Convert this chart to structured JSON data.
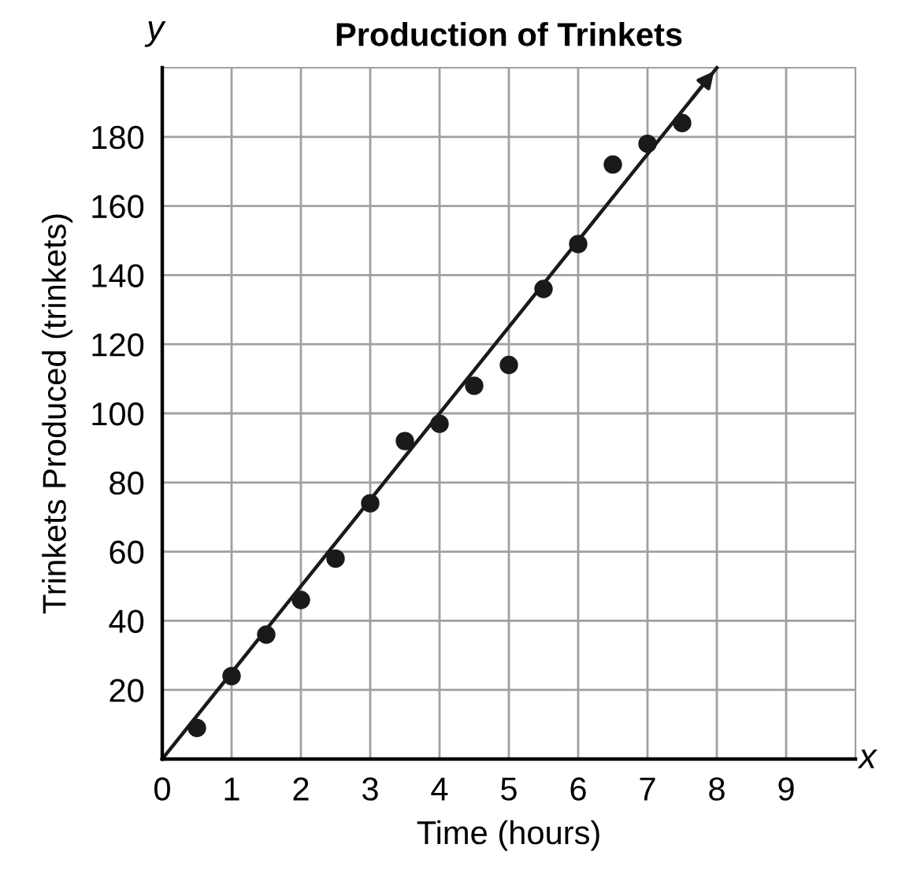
{
  "chart_data": {
    "type": "scatter",
    "title": "Production of Trinkets",
    "xlabel": "Time (hours)",
    "ylabel": "Trinkets Produced (trinkets)",
    "annotations": [
      "x",
      "y"
    ],
    "series": [
      {
        "color": "#1a1a1a",
        "x": [
          0.5,
          1,
          1.5,
          2,
          2.5,
          3,
          3.5,
          4,
          4.5,
          5,
          5.5,
          6,
          6.5,
          7,
          7.5
        ],
        "values": [
          9,
          24,
          36,
          46,
          58,
          74,
          92,
          97,
          108,
          114,
          136,
          149,
          172,
          178,
          184
        ],
        "marker": "circle"
      },
      {
        "type": "line",
        "color": "#1a1a1a",
        "x": [
          0,
          8
        ],
        "values": [
          0,
          200
        ],
        "marker": "none",
        "line_style": "solid"
      }
    ],
    "xlim": [
      0,
      10
    ],
    "ylim": [
      0,
      200
    ],
    "xticks": [
      0,
      1,
      2,
      3,
      4,
      5,
      6,
      7,
      8,
      9
    ],
    "yticks": [
      {
        "value": 0,
        "label": null
      },
      20,
      40,
      60,
      80,
      100,
      120,
      140,
      160,
      180
    ],
    "grid": true
  }
}
